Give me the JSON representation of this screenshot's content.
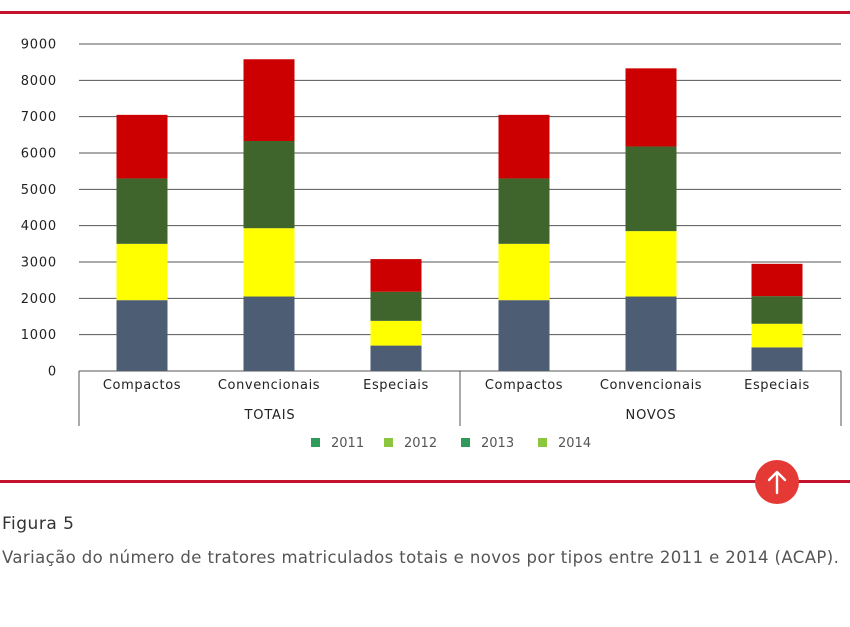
{
  "colors": {
    "rule": "#c4122f",
    "button": "#e53935",
    "gridline": "#555555",
    "axis_text": "#222222",
    "seg_2011": "#4d5d73",
    "seg_2012": "#ffff00",
    "seg_2013": "#3f652c",
    "seg_2014": "#cc0000",
    "legend_2011": "#2e9b5a",
    "legend_2012": "#8cc63f",
    "legend_2013": "#2e9b5a",
    "legend_2014": "#8cc63f"
  },
  "scroll_top_button": {
    "icon": "arrow-up-icon"
  },
  "caption": {
    "title": "Figura 5",
    "text": "Variação do número de tratores matriculados totais e novos por tipos entre 2011 e 2014 (ACAP)."
  },
  "chart_data": {
    "type": "bar",
    "stacked": true,
    "ylim": [
      0,
      9000
    ],
    "yticks": [
      "0",
      "1000",
      "2000",
      "3000",
      "4000",
      "5000",
      "6000",
      "7000",
      "8000",
      "9000"
    ],
    "grid": true,
    "legend_position": "bottom",
    "groups": [
      {
        "label": "TOTAIS",
        "categories": [
          "Compactos",
          "Convencionais",
          "Especiais"
        ]
      },
      {
        "label": "NOVOS",
        "categories": [
          "Compactos",
          "Convencionais",
          "Especiais"
        ]
      }
    ],
    "categories": [
      "Compactos",
      "Convencionais",
      "Especiais",
      "Compactos",
      "Convencionais",
      "Especiais"
    ],
    "series": [
      {
        "name": "2011",
        "values": [
          1950,
          2050,
          700,
          1950,
          2050,
          650
        ]
      },
      {
        "name": "2012",
        "values": [
          1550,
          1880,
          680,
          1550,
          1800,
          650
        ]
      },
      {
        "name": "2013",
        "values": [
          1800,
          2400,
          800,
          1800,
          2330,
          760
        ]
      },
      {
        "name": "2014",
        "values": [
          1750,
          2250,
          900,
          1750,
          2150,
          890
        ]
      }
    ]
  }
}
